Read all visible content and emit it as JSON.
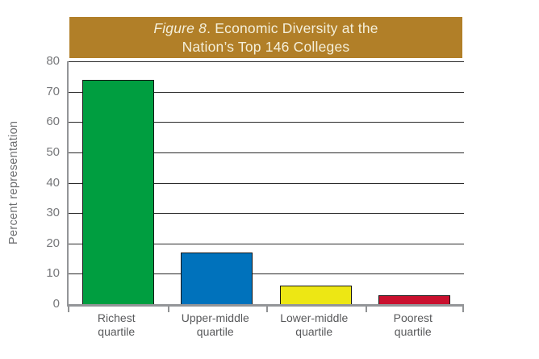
{
  "figure": {
    "title_italic": "Figure 8",
    "title_rest": ". Economic Diversity at the",
    "title_line2": "Nation’s Top 146 Colleges",
    "banner_color": "#B17F28",
    "title_color": "#F4EFDA"
  },
  "chart_data": {
    "type": "bar",
    "title": "Figure 8. Economic Diversity at the Nation's Top 146 Colleges",
    "categories": [
      "Richest\nquartile",
      "Upper-middle\nquartile",
      "Lower-middle\nquartile",
      "Poorest\nquartile"
    ],
    "values": [
      74,
      17,
      6,
      3
    ],
    "bar_colors": [
      "#009E40",
      "#0072BC",
      "#EDE714",
      "#C9102E"
    ],
    "xlabel": "",
    "ylabel": "Percent representation",
    "ylim": [
      0,
      80
    ],
    "ytick_step": 10,
    "grid": true,
    "legend": false,
    "colors": {
      "gridline": "#2B2B2B",
      "axis": "#939598",
      "ytick_label": "#77787B",
      "category_label": "#58595B",
      "background": "#FFFFFF"
    }
  }
}
